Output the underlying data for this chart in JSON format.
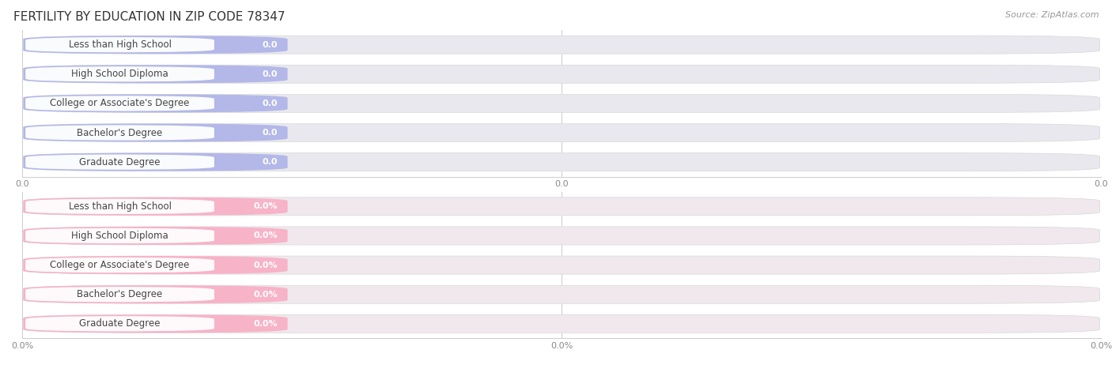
{
  "title": "FERTILITY BY EDUCATION IN ZIP CODE 78347",
  "source": "Source: ZipAtlas.com",
  "categories": [
    "Less than High School",
    "High School Diploma",
    "College or Associate's Degree",
    "Bachelor's Degree",
    "Graduate Degree"
  ],
  "values_top": [
    0.0,
    0.0,
    0.0,
    0.0,
    0.0
  ],
  "values_bottom": [
    0.0,
    0.0,
    0.0,
    0.0,
    0.0
  ],
  "bar_color_top": "#b3b8e8",
  "bar_color_bottom": "#f7b3c8",
  "bg_color": "#f7f7f7",
  "bar_bg_color": "#e8e8ee",
  "bar_bg_color_bottom": "#f0e8ec",
  "title_fontsize": 11,
  "label_fontsize": 8.5,
  "value_fontsize": 8,
  "axis_tick_fontsize": 8,
  "figsize": [
    14.06,
    4.76
  ]
}
